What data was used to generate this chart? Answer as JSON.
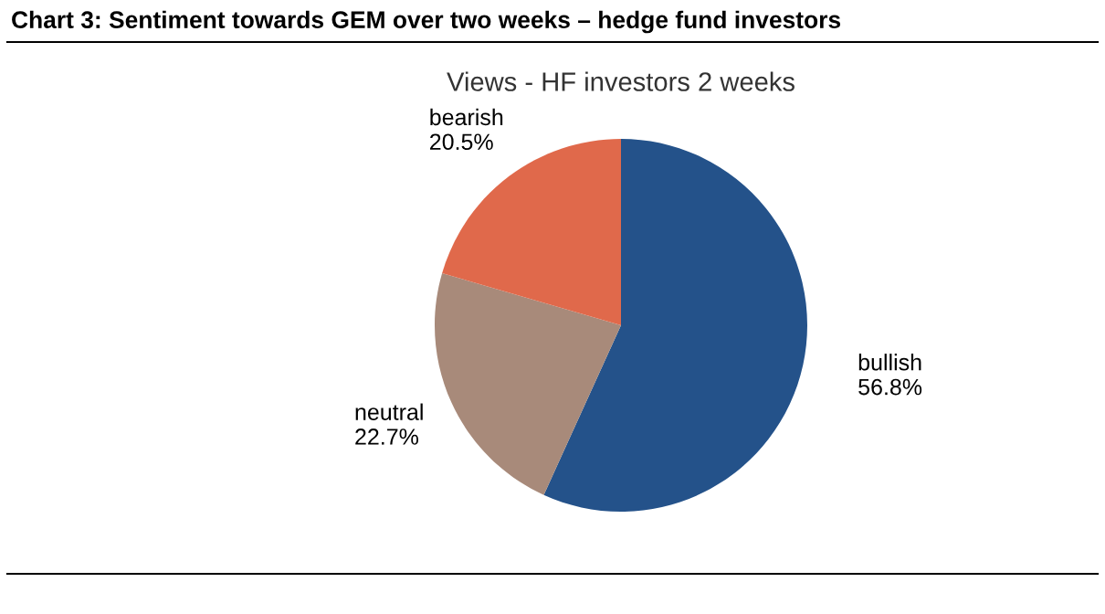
{
  "chart_data": {
    "type": "pie",
    "title": "Chart 3: Sentiment towards GEM over two weeks – hedge fund investors",
    "subtitle": "Views - HF investors 2 weeks",
    "categories": [
      "bullish",
      "neutral",
      "bearish"
    ],
    "values": [
      56.8,
      22.7,
      20.5
    ],
    "value_labels": [
      "56.8%",
      "22.7%",
      "20.5%"
    ],
    "colors": [
      "#24528a",
      "#a88a7a",
      "#e0694b"
    ],
    "legend": false
  }
}
